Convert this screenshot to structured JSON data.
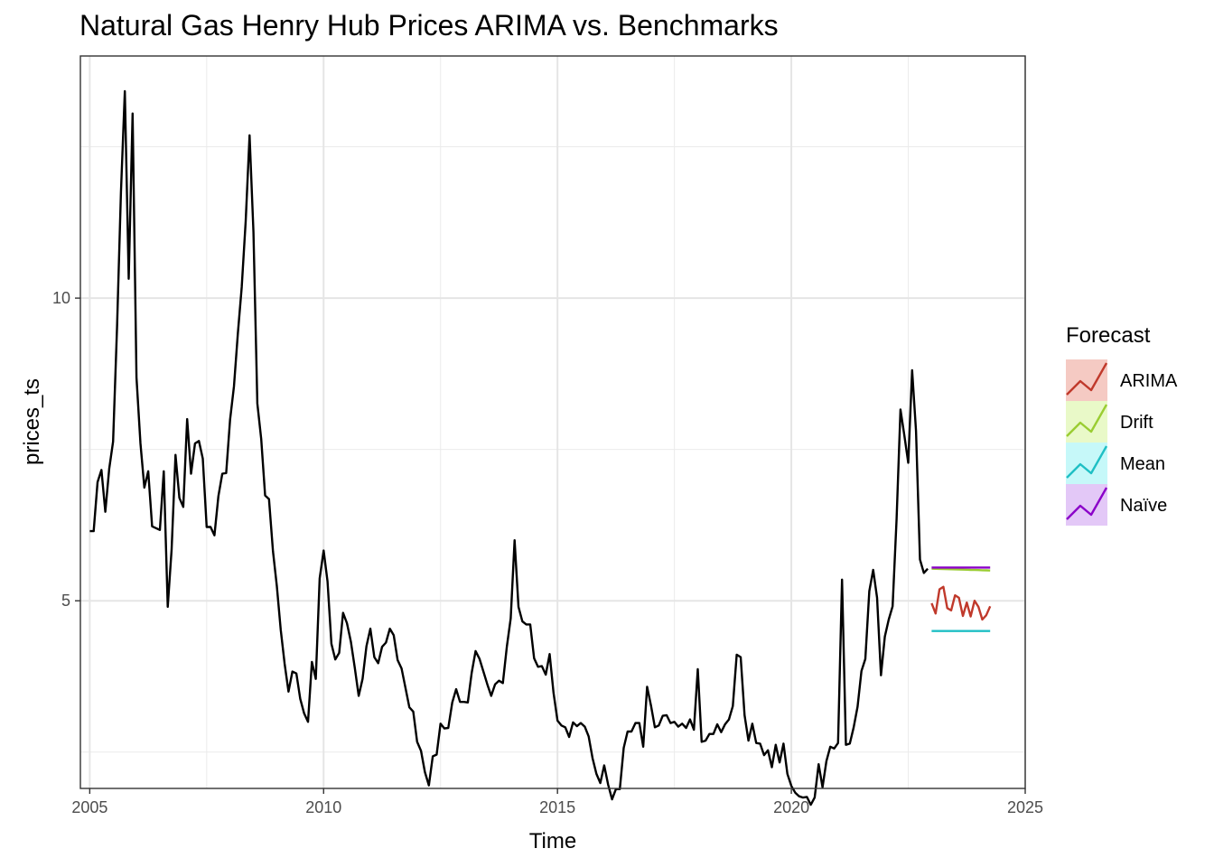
{
  "chart_data": {
    "type": "line",
    "title": "Natural Gas Henry Hub Prices ARIMA vs. Benchmarks",
    "xlabel": "Time",
    "ylabel": "prices_ts",
    "xlim": [
      2004.8,
      2025.0
    ],
    "ylim": [
      1.9,
      14.0
    ],
    "x_ticks": [
      2005,
      2010,
      2015,
      2020,
      2025
    ],
    "x_tick_labels": [
      "2005",
      "2010",
      "2015",
      "2020",
      "2025"
    ],
    "y_ticks": [
      5,
      10
    ],
    "y_tick_labels": [
      "5",
      "10"
    ],
    "y_minor_ticks": [
      2.5,
      7.5,
      12.5
    ],
    "grid": true,
    "legend": {
      "title": "Forecast",
      "position": "right",
      "entries": [
        {
          "label": "ARIMA",
          "color": "#c0392b",
          "fill": "#f5cac3"
        },
        {
          "label": "Drift",
          "color": "#9acd32",
          "fill": "#e9f9c8"
        },
        {
          "label": "Mean",
          "color": "#1fbfc4",
          "fill": "#c6f8f9"
        },
        {
          "label": "Naïve",
          "color": "#8b00c9",
          "fill": "#e3c8f7"
        }
      ]
    },
    "history": {
      "color": "#000000",
      "start": 2005.0,
      "step": 0.08333,
      "values": [
        6.15,
        6.15,
        6.96,
        7.16,
        6.47,
        7.18,
        7.63,
        9.53,
        11.75,
        13.42,
        10.32,
        13.05,
        8.69,
        7.6,
        6.87,
        7.14,
        6.23,
        6.2,
        6.17,
        7.14,
        4.9,
        5.85,
        7.41,
        6.7,
        6.55,
        8.0,
        7.1,
        7.6,
        7.64,
        7.35,
        6.22,
        6.22,
        6.08,
        6.73,
        7.1,
        7.11,
        7.99,
        8.54,
        9.41,
        10.18,
        11.27,
        12.69,
        11.09,
        8.26,
        7.67,
        6.74,
        6.68,
        5.82,
        5.24,
        4.52,
        3.96,
        3.5,
        3.83,
        3.8,
        3.38,
        3.14,
        3.0,
        3.99,
        3.71,
        5.37,
        5.83,
        5.32,
        4.29,
        4.03,
        4.14,
        4.8,
        4.63,
        4.32,
        3.89,
        3.43,
        3.71,
        4.25,
        4.54,
        4.07,
        3.97,
        4.24,
        4.31,
        4.54,
        4.43,
        4.02,
        3.88,
        3.56,
        3.24,
        3.17,
        2.67,
        2.52,
        2.17,
        1.95,
        2.43,
        2.46,
        2.97,
        2.89,
        2.9,
        3.32,
        3.54,
        3.33,
        3.33,
        3.32,
        3.81,
        4.17,
        4.04,
        3.83,
        3.62,
        3.43,
        3.62,
        3.68,
        3.64,
        4.24,
        4.71,
        6.0,
        4.9,
        4.66,
        4.61,
        4.61,
        4.05,
        3.91,
        3.92,
        3.78,
        4.12,
        3.48,
        3.02,
        2.94,
        2.91,
        2.75,
        2.99,
        2.93,
        2.98,
        2.92,
        2.76,
        2.4,
        2.14,
        1.99,
        2.28,
        1.96,
        1.72,
        1.89,
        1.89,
        2.57,
        2.84,
        2.84,
        2.98,
        2.98,
        2.59,
        3.58,
        3.27,
        2.91,
        2.94,
        3.1,
        3.11,
        2.98,
        3.0,
        2.92,
        2.97,
        2.9,
        3.04,
        2.87,
        3.87,
        2.67,
        2.69,
        2.8,
        2.8,
        2.96,
        2.83,
        2.96,
        3.04,
        3.26,
        4.11,
        4.07,
        3.11,
        2.69,
        2.97,
        2.65,
        2.64,
        2.45,
        2.53,
        2.25,
        2.62,
        2.33,
        2.64,
        2.14,
        1.94,
        1.83,
        1.77,
        1.75,
        1.76,
        1.63,
        1.75,
        2.3,
        1.92,
        2.35,
        2.59,
        2.56,
        2.65,
        5.35,
        2.62,
        2.64,
        2.91,
        3.25,
        3.84,
        4.04,
        5.16,
        5.51,
        5.05,
        3.77,
        4.41,
        4.69,
        4.91,
        6.35,
        8.16,
        7.73,
        7.28,
        8.81,
        7.81,
        5.68,
        5.46,
        5.53
      ]
    },
    "forecast": {
      "x_start": 2023.0,
      "step": 0.08333,
      "series": [
        {
          "name": "ARIMA",
          "color": "#c0392b",
          "values": [
            4.96,
            4.79,
            5.19,
            5.23,
            4.88,
            4.84,
            5.09,
            5.05,
            4.75,
            4.97,
            4.74,
            5.0,
            4.9,
            4.69,
            4.76,
            4.91
          ]
        },
        {
          "name": "Drift",
          "color": "#9acd32",
          "values": [
            5.53,
            5.529,
            5.527,
            5.525,
            5.523,
            5.521,
            5.519,
            5.517,
            5.515,
            5.513,
            5.511,
            5.509,
            5.507,
            5.505,
            5.503,
            5.5
          ]
        },
        {
          "name": "Mean",
          "color": "#1fbfc4",
          "values": [
            4.5,
            4.5,
            4.5,
            4.5,
            4.5,
            4.5,
            4.5,
            4.5,
            4.5,
            4.5,
            4.5,
            4.5,
            4.5,
            4.5,
            4.5,
            4.5
          ]
        },
        {
          "name": "Naïve",
          "color": "#8b00c9",
          "values": [
            5.55,
            5.55,
            5.55,
            5.55,
            5.55,
            5.55,
            5.55,
            5.55,
            5.55,
            5.55,
            5.55,
            5.55,
            5.55,
            5.55,
            5.55,
            5.55
          ]
        }
      ]
    }
  }
}
